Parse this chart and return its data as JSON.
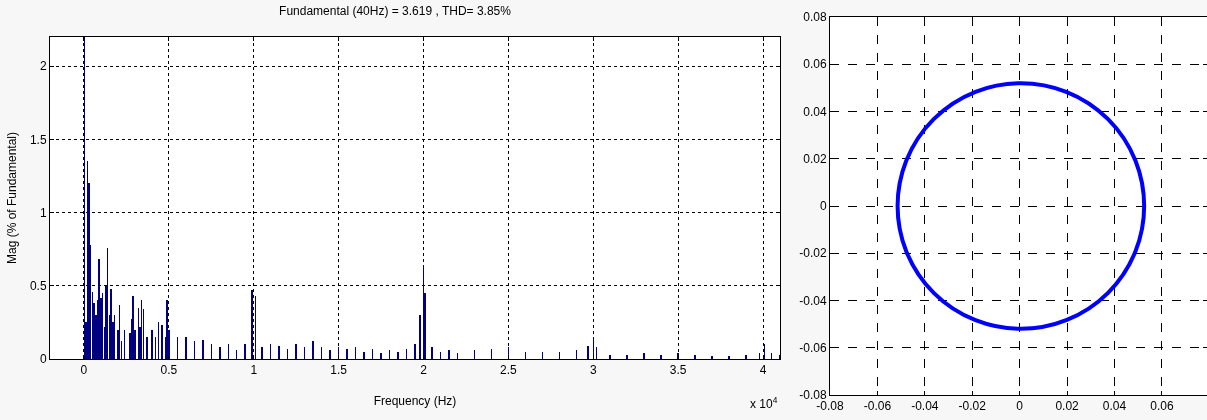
{
  "chart_data": [
    {
      "type": "bar",
      "title": "Fundamental (40Hz) = 3.619 , THD= 3.85%",
      "xlabel": "Frequency (Hz)",
      "ylabel": "Mag (% of Fundamental)",
      "annotations": [
        "x 10$^{4}$"
      ],
      "x": [
        0.004,
        0.012,
        0.02,
        0.03,
        0.04,
        0.05,
        0.06,
        0.07,
        0.08,
        0.09,
        0.1,
        0.11,
        0.12,
        0.13,
        0.14,
        0.15,
        0.16,
        0.17,
        0.18,
        0.2,
        0.21,
        0.22,
        0.24,
        0.27,
        0.28,
        0.29,
        0.3,
        0.32,
        0.33,
        0.34,
        0.35,
        0.37,
        0.4,
        0.42,
        0.44,
        0.46,
        0.48,
        0.49,
        0.5,
        0.55,
        0.6,
        0.65,
        0.7,
        0.75,
        0.8,
        0.85,
        0.9,
        0.95,
        0.99,
        1.01,
        1.05,
        1.1,
        1.15,
        1.2,
        1.25,
        1.3,
        1.35,
        1.4,
        1.45,
        1.5,
        1.55,
        1.6,
        1.65,
        1.7,
        1.75,
        1.8,
        1.85,
        1.9,
        1.95,
        1.98,
        2.0,
        2.01,
        2.05,
        2.1,
        2.15,
        2.2,
        2.3,
        2.4,
        2.5,
        2.6,
        2.7,
        2.8,
        2.9,
        2.97,
        3.0,
        3.02,
        3.1,
        3.2,
        3.3,
        3.4,
        3.5,
        3.6,
        3.7,
        3.8,
        3.9,
        3.98,
        4.01,
        4.05,
        4.1
      ],
      "values": [
        2.2,
        0.25,
        1.35,
        1.2,
        0.78,
        0.46,
        0.38,
        0.3,
        0.4,
        0.68,
        0.42,
        0.45,
        0.22,
        0.5,
        0.76,
        0.3,
        0.48,
        0.25,
        0.3,
        0.2,
        0.37,
        0.12,
        0.2,
        0.18,
        0.27,
        0.43,
        0.2,
        0.35,
        0.22,
        0.4,
        0.34,
        0.15,
        0.2,
        0.15,
        0.25,
        0.23,
        0.15,
        0.4,
        0.2,
        0.15,
        0.15,
        0.12,
        0.13,
        0.1,
        0.08,
        0.1,
        0.06,
        0.1,
        0.47,
        0.43,
        0.08,
        0.1,
        0.09,
        0.07,
        0.1,
        0.08,
        0.12,
        0.08,
        0.06,
        0.08,
        0.07,
        0.08,
        0.05,
        0.07,
        0.04,
        0.06,
        0.05,
        0.07,
        0.1,
        0.3,
        0.64,
        0.45,
        0.08,
        0.05,
        0.06,
        0.04,
        0.06,
        0.07,
        0.08,
        0.05,
        0.05,
        0.05,
        0.06,
        0.09,
        0.14,
        0.08,
        0.03,
        0.03,
        0.04,
        0.03,
        0.04,
        0.03,
        0.02,
        0.02,
        0.03,
        0.04,
        0.1,
        0.04,
        0.03
      ],
      "color": "#000080",
      "xlim": [
        -0.2,
        4.1
      ],
      "xticks": [
        0,
        0.5,
        1,
        1.5,
        2,
        2.5,
        3,
        3.5,
        4
      ],
      "ylim": [
        0,
        2.2
      ],
      "yticks": [
        0,
        0.5,
        1,
        1.5,
        2
      ],
      "grid": true
    },
    {
      "type": "line",
      "xlim": [
        -0.08,
        0.079
      ],
      "xticks": [
        -0.08,
        -0.06,
        -0.04,
        -0.02,
        0,
        0.02,
        0.04,
        0.06
      ],
      "ylim": [
        -0.08,
        0.08
      ],
      "yticks": [
        -0.08,
        -0.06,
        -0.04,
        -0.02,
        0,
        0.02,
        0.04,
        0.06,
        0.08
      ],
      "grid": true
    }
  ]
}
